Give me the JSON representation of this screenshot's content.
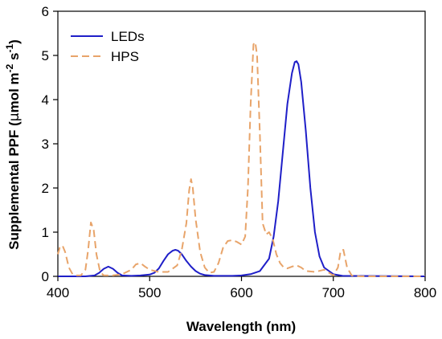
{
  "chart_data": {
    "type": "line",
    "xlabel": "Wavelength (nm)",
    "ylabel": {
      "prefix": "Supplemental PPF (",
      "mu": "µ",
      "mol": "mol m",
      "exp1": "-2",
      "s": " s",
      "exp2": "-1",
      "suffix": ")"
    },
    "xlim": [
      400,
      800
    ],
    "ylim": [
      0,
      6
    ],
    "xticks": [
      "400",
      "500",
      "600",
      "700",
      "800"
    ],
    "yticks": [
      "0",
      "1",
      "2",
      "3",
      "4",
      "5",
      "6"
    ],
    "xtick_values": [
      400,
      500,
      600,
      700,
      800
    ],
    "ytick_values": [
      0,
      1,
      2,
      3,
      4,
      5,
      6
    ],
    "grid": false,
    "legend_position": "top-left",
    "series": [
      {
        "name": "LEDs",
        "color": "#1f1fc8",
        "style": "solid",
        "x": [
          400,
          430,
          440,
          445,
          450,
          455,
          460,
          465,
          470,
          480,
          490,
          500,
          505,
          510,
          515,
          520,
          525,
          528,
          531,
          535,
          540,
          545,
          550,
          555,
          560,
          570,
          580,
          590,
          600,
          610,
          620,
          630,
          635,
          640,
          645,
          650,
          655,
          658,
          660,
          662,
          665,
          670,
          675,
          680,
          685,
          690,
          700,
          710,
          800
        ],
        "y": [
          0,
          0,
          0.02,
          0.08,
          0.17,
          0.22,
          0.17,
          0.08,
          0.02,
          0.01,
          0.02,
          0.04,
          0.08,
          0.18,
          0.35,
          0.5,
          0.58,
          0.6,
          0.58,
          0.5,
          0.35,
          0.22,
          0.12,
          0.06,
          0.03,
          0.01,
          0.01,
          0.01,
          0.02,
          0.05,
          0.12,
          0.4,
          0.9,
          1.7,
          2.8,
          3.9,
          4.6,
          4.85,
          4.87,
          4.8,
          4.4,
          3.3,
          2.0,
          1.0,
          0.45,
          0.2,
          0.05,
          0.01,
          0
        ]
      },
      {
        "name": "HPS",
        "color": "#e8a46a",
        "style": "dashed",
        "x": [
          400,
          402,
          405,
          408,
          412,
          416,
          420,
          425,
          430,
          433,
          436,
          439,
          442,
          446,
          450,
          460,
          470,
          480,
          485,
          490,
          495,
          500,
          510,
          520,
          530,
          535,
          540,
          543,
          545,
          547,
          550,
          555,
          560,
          565,
          570,
          575,
          580,
          585,
          590,
          595,
          600,
          604,
          607,
          610,
          613,
          615,
          617,
          620,
          623,
          627,
          630,
          634,
          638,
          642,
          646,
          650,
          655,
          660,
          665,
          670,
          680,
          690,
          700,
          705,
          708,
          711,
          715,
          720,
          730,
          800
        ],
        "y": [
          0.5,
          0.65,
          0.7,
          0.55,
          0.2,
          0.05,
          0.02,
          0.02,
          0.15,
          0.6,
          1.22,
          1.05,
          0.5,
          0.1,
          0.02,
          0.02,
          0.05,
          0.15,
          0.27,
          0.3,
          0.22,
          0.15,
          0.1,
          0.1,
          0.25,
          0.6,
          1.2,
          1.95,
          2.2,
          2.0,
          1.3,
          0.55,
          0.2,
          0.08,
          0.1,
          0.3,
          0.65,
          0.8,
          0.82,
          0.78,
          0.72,
          0.9,
          2.0,
          3.9,
          5.25,
          5.3,
          5.0,
          3.2,
          1.2,
          0.95,
          1.0,
          0.85,
          0.5,
          0.3,
          0.2,
          0.18,
          0.22,
          0.25,
          0.2,
          0.12,
          0.1,
          0.15,
          0.02,
          0.2,
          0.58,
          0.6,
          0.2,
          0.02,
          0,
          0
        ]
      }
    ]
  }
}
